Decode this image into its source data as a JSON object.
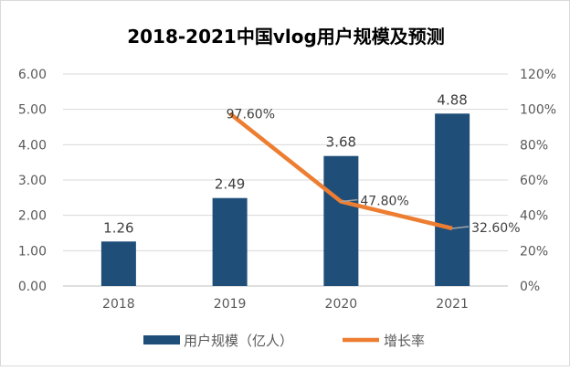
{
  "chart_data": {
    "type": "bar+line",
    "title": "2018-2021中国vlog用户规模及预测",
    "categories": [
      "2018",
      "2019",
      "2020",
      "2021"
    ],
    "series": [
      {
        "name": "用户规模（亿人）",
        "type": "bar",
        "axis": "left",
        "values": [
          1.26,
          2.49,
          3.68,
          4.88
        ],
        "labels": [
          "1.26",
          "2.49",
          "3.68",
          "4.88"
        ],
        "color": "#1f4e79"
      },
      {
        "name": "增长率",
        "type": "line",
        "axis": "right",
        "values": [
          null,
          97.6,
          47.8,
          32.6
        ],
        "labels": [
          "",
          "97.60%",
          "47.80%",
          "32.60%"
        ],
        "color": "#ed7d31"
      }
    ],
    "ylim": [
      0,
      6
    ],
    "yticks": [
      "0.00",
      "1.00",
      "2.00",
      "3.00",
      "4.00",
      "5.00",
      "6.00"
    ],
    "y2lim": [
      0,
      120
    ],
    "y2ticks": [
      "0%",
      "20%",
      "40%",
      "60%",
      "80%",
      "100%",
      "120%"
    ],
    "grid": true,
    "legend": "bottom"
  }
}
